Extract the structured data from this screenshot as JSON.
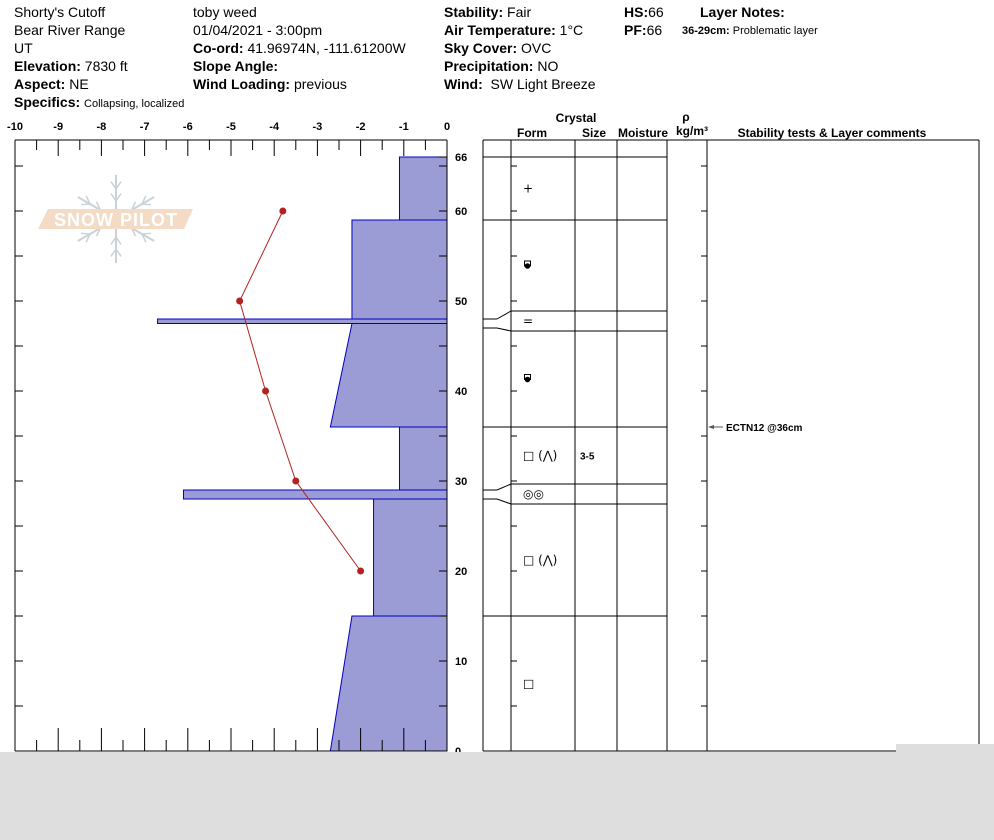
{
  "header": {
    "location": "Shorty's Cutoff",
    "range": "Bear River Range",
    "state": "UT",
    "elevation": {
      "label": "Elevation:",
      "value": "7830 ft"
    },
    "aspect": {
      "label": "Aspect:",
      "value": "NE"
    },
    "specifics": {
      "label": "Specifics:",
      "value": "Collapsing, localized"
    },
    "observer": "toby weed",
    "datetime": "01/04/2021 - 3:00pm",
    "coord": {
      "label": "Co-ord:",
      "value": "41.96974N, -111.61200W"
    },
    "slope_angle": {
      "label": "Slope Angle:",
      "value": ""
    },
    "wind_loading": {
      "label": "Wind Loading:",
      "value": "previous"
    },
    "stability": {
      "label": "Stability:",
      "value": "Fair"
    },
    "air_temperature": {
      "label": "Air Temperature:",
      "value": "1°C"
    },
    "sky_cover": {
      "label": "Sky Cover:",
      "value": "OVC"
    },
    "precipitation": {
      "label": "Precipitation:",
      "value": "NO"
    },
    "wind": {
      "label": "Wind:",
      "value": "SW Light Breeze"
    },
    "hs": {
      "label": "HS:",
      "value": "66"
    },
    "pf": {
      "label": "PF:",
      "value": "66"
    },
    "layer_notes": {
      "label": "Layer Notes:",
      "items": [
        {
          "range": "36-29cm:",
          "text": "Problematic layer"
        }
      ]
    }
  },
  "logo": {
    "text": "SNOW PILOT"
  },
  "chart_data": {
    "type": "line",
    "x_ticks": [
      "-10",
      "-9",
      "-8",
      "-7",
      "-6",
      "-5",
      "-4",
      "-3",
      "-2",
      "-1",
      "0"
    ],
    "xlim": [
      -10,
      0
    ],
    "ylim": [
      0,
      66
    ],
    "y_ticks": [
      "0",
      "10",
      "20",
      "30",
      "40",
      "50",
      "60",
      "66"
    ],
    "temperature_profile": {
      "color": "#b22222",
      "points": [
        {
          "depth": 60,
          "temp": -3.8
        },
        {
          "depth": 50,
          "temp": -4.8
        },
        {
          "depth": 40,
          "temp": -4.2
        },
        {
          "depth": 30,
          "temp": -3.5
        },
        {
          "depth": 20,
          "temp": -2.0
        }
      ]
    },
    "hardness_profile": {
      "fill": "#9b9bd5",
      "stroke": "#0000c0",
      "layers": [
        {
          "top": 66,
          "bottom": 59,
          "top_value": -1.1,
          "bottom_value": -1.1
        },
        {
          "top": 59,
          "bottom": 48,
          "top_value": -2.2,
          "bottom_value": -2.2
        },
        {
          "top": 48,
          "bottom": 47.5,
          "top_value": -6.7,
          "bottom_value": -6.7
        },
        {
          "top": 47.5,
          "bottom": 36,
          "top_value": -2.2,
          "bottom_value": -2.7
        },
        {
          "top": 36,
          "bottom": 29,
          "top_value": -1.1,
          "bottom_value": -1.1
        },
        {
          "top": 29,
          "bottom": 28,
          "top_value": -6.1,
          "bottom_value": -6.1
        },
        {
          "top": 28,
          "bottom": 15,
          "top_value": -1.7,
          "bottom_value": -1.7
        },
        {
          "top": 15,
          "bottom": 0,
          "top_value": -2.2,
          "bottom_value": -2.7
        }
      ]
    }
  },
  "table": {
    "headers": {
      "crystal": "Crystal",
      "form": "Form",
      "size": "Size",
      "moisture": "Moisture",
      "rho": "ρ",
      "density_unit": "kg/m³",
      "comments": "Stability tests & Layer comments"
    },
    "layers": [
      {
        "top": 66,
        "bottom": 59,
        "form": "+",
        "icon": "precipitation-particles-icon",
        "size": ""
      },
      {
        "top": 59,
        "bottom": 48,
        "form": "melt",
        "icon": "melt-forms-icon",
        "size": ""
      },
      {
        "top": 48,
        "bottom": 47,
        "form": "=",
        "icon": "crust-icon",
        "size": ""
      },
      {
        "top": 47,
        "bottom": 36,
        "form": "melt",
        "icon": "melt-forms-icon",
        "size": ""
      },
      {
        "top": 36,
        "bottom": 29,
        "form": "□ (⋀)",
        "icon": "faceted-crystals-icon",
        "size": "3-5"
      },
      {
        "top": 29,
        "bottom": 28,
        "form": "◎◎",
        "icon": "melt-freeze-icon",
        "size": ""
      },
      {
        "top": 28,
        "bottom": 15,
        "form": "□ (⋀)",
        "icon": "faceted-crystals-icon",
        "size": ""
      },
      {
        "top": 15,
        "bottom": 0,
        "form": "□",
        "icon": "faceted-crystals-icon",
        "size": ""
      }
    ],
    "stability_tests": [
      {
        "depth": 36,
        "text": "ECTN12 @36cm"
      }
    ]
  }
}
